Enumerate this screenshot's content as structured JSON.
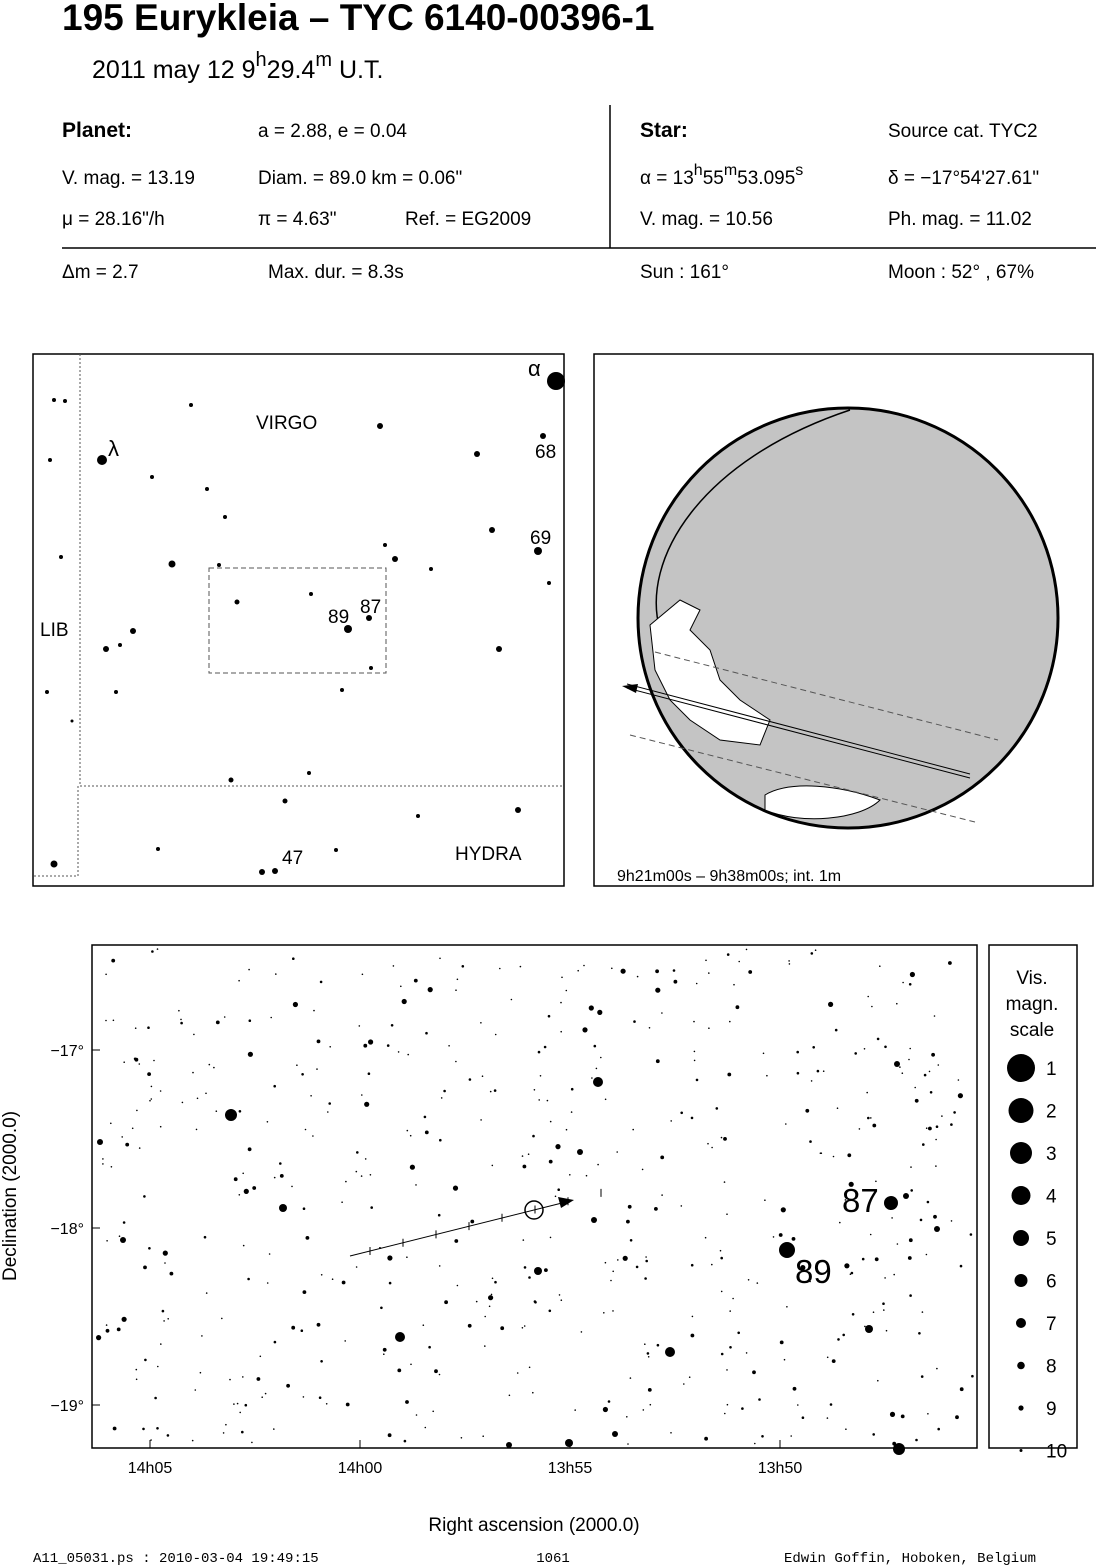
{
  "header": {
    "title": "195 Eurykleia  –  TYC 6140-00396-1",
    "date": [
      "2011 may 12   9",
      "h",
      "29.4",
      "m",
      " U.T."
    ]
  },
  "info": {
    "planet_label": "Planet:",
    "star_label": "Star:",
    "orbit": "a = 2.88, e = 0.04",
    "source": "Source cat.  TYC2",
    "planet_mag": "V. mag. = 13.19",
    "diam": "Diam. = 89.0 km = 0.06\"",
    "ra": [
      "α = 13",
      "h",
      "55",
      "m",
      "53.095",
      "s"
    ],
    "dec": "δ = −17°54'27.61\"",
    "mu": "μ =  28.16\"/h",
    "pi": "π =  4.63\"",
    "ref": "Ref. = EG2009",
    "star_mag": "V. mag. = 10.56",
    "ph_mag": "Ph. mag. = 11.02",
    "dm": "Δm = 2.7",
    "maxdur": "Max. dur. = 8.3s",
    "sun": "Sun : 161°",
    "moon": "Moon :  52° , 67%"
  },
  "finder": {
    "labels": [
      "VIRGO",
      "LIB",
      "HYDRA",
      "α",
      "λ",
      "68",
      "69",
      "89",
      "87",
      "47"
    ]
  },
  "globe": {
    "caption": "9h21m00s –  9h38m00s; int.  1m"
  },
  "chart": {
    "yticks": [
      "−17°",
      "−18°",
      "−19°"
    ],
    "xticks": [
      "14h05",
      "14h00",
      "13h55",
      "13h50"
    ],
    "ylabel": "Declination (2000.0)",
    "xlabel": "Right ascension (2000.0)",
    "star_labels": [
      "87",
      "89"
    ]
  },
  "legend": {
    "title": [
      "Vis.",
      "magn.",
      "scale"
    ],
    "items": [
      "1",
      "2",
      "3",
      "4",
      "5",
      "6",
      "7",
      "8",
      "9",
      "10"
    ]
  },
  "footer": [
    "A11_05031.ps : 2010-03-04 19:49:15",
    "1061",
    "Edwin Goffin, Hoboken, Belgium"
  ]
}
